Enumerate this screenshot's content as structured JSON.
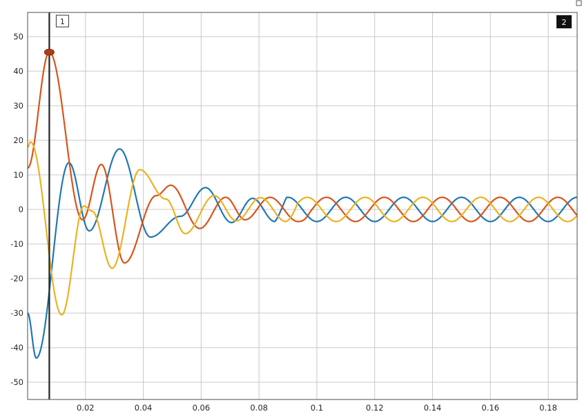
{
  "chart_data": {
    "type": "line",
    "title": "",
    "xlabel": "",
    "ylabel": "",
    "xlim": [
      0.0,
      0.19
    ],
    "ylim": [
      -55,
      57
    ],
    "x_ticks": [
      0.02,
      0.04,
      0.06,
      0.08,
      0.1,
      0.12,
      0.14,
      0.16,
      0.18
    ],
    "x_tick_labels": [
      "0.02",
      "0.04",
      "0.06",
      "0.08",
      "0.1",
      "0.12",
      "0.14",
      "0.16",
      "0.18"
    ],
    "y_ticks": [
      50,
      40,
      30,
      20,
      10,
      0,
      -10,
      -20,
      -30,
      -40,
      -50
    ],
    "y_tick_labels": [
      "50",
      "40",
      "30",
      "20",
      "10",
      "0",
      "-10",
      "-20",
      "-30",
      "-40",
      "-50"
    ],
    "grid": true,
    "steady_amplitude": 3.5,
    "frequency_hz": 50,
    "series": [
      {
        "color": "#1f77b4",
        "phase_deg": -90,
        "extrema": [
          [
            0.0,
            -30
          ],
          [
            0.003,
            -43
          ],
          [
            0.0143,
            13.5
          ],
          [
            0.0213,
            -6.2
          ],
          [
            0.0318,
            17.5
          ],
          [
            0.0425,
            -8
          ],
          [
            0.0528,
            -2
          ],
          [
            0.0615,
            6.3
          ],
          [
            0.0705,
            -3.8
          ],
          [
            0.0778,
            3.2
          ],
          [
            0.0855,
            -3.5
          ]
        ]
      },
      {
        "color": "#d95319",
        "phase_deg": 30,
        "extrema": [
          [
            0.0,
            12
          ],
          [
            0.0075,
            45.5
          ],
          [
            0.019,
            -3
          ],
          [
            0.0255,
            13
          ],
          [
            0.0335,
            -15.5
          ],
          [
            0.0445,
            4
          ],
          [
            0.0495,
            7
          ],
          [
            0.0595,
            -5.5
          ],
          [
            0.0685,
            3.5
          ],
          [
            0.0752,
            -3
          ],
          [
            0.0838,
            3.5
          ],
          [
            0.0935,
            -3.5
          ]
        ]
      },
      {
        "color": "#edb120",
        "phase_deg": 150,
        "extrema": [
          [
            0.0,
            18
          ],
          [
            0.001,
            19.5
          ],
          [
            0.0118,
            -30.5
          ],
          [
            0.0195,
            1
          ],
          [
            0.0223,
            -0.5
          ],
          [
            0.0292,
            -17
          ],
          [
            0.0388,
            11.5
          ],
          [
            0.0478,
            3
          ],
          [
            0.0545,
            -7
          ],
          [
            0.0645,
            4
          ],
          [
            0.0722,
            -3.3
          ],
          [
            0.0805,
            3.4
          ],
          [
            0.0893,
            -3.5
          ]
        ]
      }
    ],
    "cursors": [
      {
        "label": "1",
        "x": 0.0075
      },
      {
        "label": "2",
        "x": 0.19
      }
    ],
    "marker": {
      "x": 0.0075,
      "y": 45.5,
      "color": "#b23c10"
    }
  }
}
